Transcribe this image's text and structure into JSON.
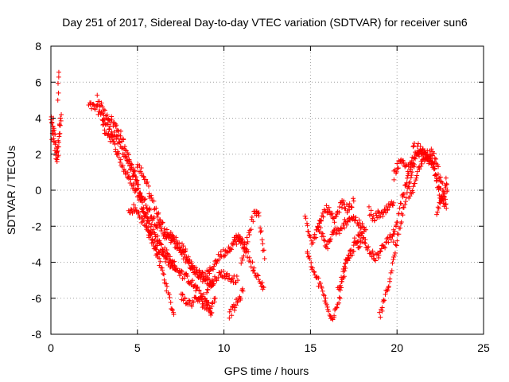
{
  "chart_data": {
    "type": "scatter",
    "title": "Day 251 of 2017, Sidereal Day-to-day VTEC variation (SDTVAR) for receiver sun6",
    "xlabel": "GPS time / hours",
    "ylabel": "SDTVAR / TECUs",
    "xlim": [
      0,
      25
    ],
    "ylim": [
      -8,
      8
    ],
    "x_ticks": [
      0,
      5,
      10,
      15,
      20,
      25
    ],
    "x_tick_labels": [
      "0",
      "5",
      "10",
      "15",
      "20",
      "25"
    ],
    "y_ticks": [
      -8,
      -6,
      -4,
      -2,
      0,
      2,
      4,
      6,
      8
    ],
    "y_tick_labels": [
      "-8",
      "-6",
      "-4",
      "-2",
      "0",
      "2",
      "4",
      "6",
      "8"
    ],
    "grid": true,
    "marker": "+",
    "color": "#ff0000",
    "series": [
      {
        "name": "SDTVAR",
        "segments": [
          [
            [
              0.0,
              4.0
            ],
            [
              0.1,
              3.4
            ],
            [
              0.2,
              2.6
            ],
            [
              0.3,
              1.8
            ],
            [
              0.4,
              2.5
            ],
            [
              0.5,
              3.5
            ],
            [
              0.6,
              4.2
            ]
          ],
          [
            [
              0.05,
              3.0
            ],
            [
              0.15,
              3.8
            ],
            [
              0.25,
              3.2
            ],
            [
              0.35,
              1.5
            ],
            [
              0.45,
              2.2
            ],
            [
              0.55,
              4.0
            ]
          ],
          [
            [
              0.45,
              6.6
            ],
            [
              0.4,
              5.0
            ]
          ],
          [
            [
              2.2,
              4.7
            ],
            [
              2.5,
              4.6
            ],
            [
              2.7,
              4.5
            ],
            [
              3.0,
              4.0
            ],
            [
              3.3,
              3.5
            ],
            [
              3.6,
              3.2
            ],
            [
              4.0,
              2.5
            ],
            [
              4.5,
              1.5
            ],
            [
              5.0,
              0.2
            ],
            [
              5.4,
              -1.3
            ],
            [
              5.8,
              -2.6
            ],
            [
              6.2,
              -3.8
            ],
            [
              6.6,
              -5.0
            ],
            [
              6.9,
              -6.3
            ],
            [
              7.1,
              -6.9
            ]
          ],
          [
            [
              2.7,
              5.2
            ],
            [
              3.0,
              4.4
            ],
            [
              3.5,
              3.9
            ],
            [
              4.0,
              3.2
            ],
            [
              4.4,
              2.0
            ],
            [
              4.8,
              1.0
            ],
            [
              5.2,
              -0.2
            ],
            [
              5.6,
              -1.0
            ],
            [
              6.0,
              -1.7
            ],
            [
              6.5,
              -2.4
            ],
            [
              7.0,
              -2.8
            ],
            [
              7.5,
              -3.3
            ],
            [
              7.8,
              -3.9
            ],
            [
              8.2,
              -4.3
            ],
            [
              8.6,
              -4.8
            ],
            [
              9.0,
              -5.0
            ],
            [
              9.4,
              -5.2
            ]
          ],
          [
            [
              3.0,
              3.5
            ],
            [
              3.4,
              3.0
            ],
            [
              3.8,
              2.2
            ],
            [
              4.2,
              1.2
            ],
            [
              4.6,
              0.5
            ],
            [
              5.0,
              -0.2
            ],
            [
              5.4,
              -1.2
            ],
            [
              5.8,
              -2.0
            ],
            [
              6.2,
              -2.8
            ],
            [
              6.6,
              -3.4
            ],
            [
              7.0,
              -4.0
            ],
            [
              7.5,
              -4.6
            ],
            [
              8.0,
              -5.0
            ],
            [
              8.5,
              -5.6
            ],
            [
              9.0,
              -6.2
            ],
            [
              9.2,
              -6.6
            ],
            [
              9.5,
              -6.0
            ]
          ],
          [
            [
              4.5,
              -1.3
            ],
            [
              4.8,
              -1.0
            ],
            [
              5.2,
              -1.5
            ],
            [
              5.6,
              -2.3
            ],
            [
              6.0,
              -3.0
            ],
            [
              6.4,
              -3.5
            ],
            [
              6.8,
              -4.0
            ],
            [
              7.2,
              -4.4
            ]
          ],
          [
            [
              5.0,
              1.3
            ],
            [
              5.2,
              1.1
            ],
            [
              5.5,
              0.5
            ],
            [
              5.8,
              -0.4
            ],
            [
              6.1,
              -1.2
            ],
            [
              6.4,
              -1.8
            ],
            [
              6.7,
              -2.4
            ],
            [
              7.0,
              -2.6
            ],
            [
              7.3,
              -2.9
            ],
            [
              7.6,
              -3.4
            ]
          ],
          [
            [
              7.6,
              -3.0
            ],
            [
              7.8,
              -3.5
            ],
            [
              8.0,
              -4.0
            ],
            [
              8.3,
              -4.5
            ],
            [
              8.6,
              -4.7
            ],
            [
              8.9,
              -4.8
            ],
            [
              9.2,
              -4.5
            ],
            [
              9.5,
              -4.0
            ],
            [
              9.8,
              -3.6
            ],
            [
              10.1,
              -3.4
            ],
            [
              10.5,
              -3.0
            ],
            [
              10.8,
              -2.7
            ],
            [
              11.2,
              -2.9
            ]
          ],
          [
            [
              7.5,
              -5.8
            ],
            [
              7.8,
              -6.2
            ],
            [
              8.1,
              -6.3
            ],
            [
              8.4,
              -6.0
            ],
            [
              8.7,
              -6.2
            ],
            [
              9.0,
              -6.5
            ],
            [
              9.3,
              -6.8
            ]
          ],
          [
            [
              9.0,
              -5.5
            ],
            [
              9.3,
              -5.2
            ],
            [
              9.6,
              -4.8
            ],
            [
              9.9,
              -4.6
            ],
            [
              10.2,
              -4.8
            ],
            [
              10.5,
              -4.9
            ],
            [
              10.8,
              -5.0
            ]
          ],
          [
            [
              10.3,
              -6.9
            ],
            [
              10.6,
              -6.5
            ],
            [
              10.9,
              -6.0
            ],
            [
              11.1,
              -5.6
            ]
          ],
          [
            [
              10.6,
              -2.6
            ],
            [
              10.9,
              -2.7
            ],
            [
              11.2,
              -3.2
            ],
            [
              11.5,
              -3.8
            ],
            [
              11.8,
              -4.6
            ],
            [
              12.1,
              -5.2
            ],
            [
              12.3,
              -5.4
            ]
          ],
          [
            [
              11.0,
              -4.0
            ],
            [
              11.3,
              -3.0
            ],
            [
              11.6,
              -1.8
            ],
            [
              11.8,
              -1.1
            ],
            [
              12.0,
              -1.4
            ],
            [
              12.2,
              -2.6
            ],
            [
              12.35,
              -3.8
            ]
          ],
          [
            [
              14.7,
              -1.5
            ],
            [
              14.9,
              -2.3
            ],
            [
              15.1,
              -2.9
            ],
            [
              15.3,
              -2.5
            ],
            [
              15.5,
              -2.0
            ],
            [
              15.7,
              -2.6
            ],
            [
              15.9,
              -3.2
            ],
            [
              16.1,
              -2.8
            ],
            [
              16.4,
              -2.2
            ],
            [
              16.7,
              -2.4
            ],
            [
              17.0,
              -1.8
            ],
            [
              17.3,
              -1.5
            ],
            [
              17.6,
              -1.6
            ],
            [
              17.9,
              -2.0
            ],
            [
              18.2,
              -2.2
            ]
          ],
          [
            [
              14.8,
              -3.5
            ],
            [
              15.1,
              -4.3
            ],
            [
              15.4,
              -5.0
            ],
            [
              15.7,
              -5.6
            ],
            [
              15.9,
              -6.3
            ],
            [
              16.1,
              -6.9
            ],
            [
              16.3,
              -7.0
            ],
            [
              16.5,
              -6.5
            ],
            [
              16.7,
              -5.8
            ],
            [
              16.9,
              -4.8
            ],
            [
              17.1,
              -3.8
            ],
            [
              17.3,
              -3.4
            ]
          ],
          [
            [
              15.4,
              -2.2
            ],
            [
              15.6,
              -1.7
            ],
            [
              15.8,
              -1.2
            ],
            [
              16.0,
              -1.0
            ],
            [
              16.2,
              -1.4
            ],
            [
              16.4,
              -1.8
            ],
            [
              16.6,
              -1.2
            ],
            [
              16.8,
              -0.7
            ],
            [
              17.0,
              -0.9
            ],
            [
              17.2,
              -1.1
            ],
            [
              17.5,
              -0.6
            ]
          ],
          [
            [
              16.6,
              -5.5
            ],
            [
              16.8,
              -4.9
            ],
            [
              17.0,
              -4.3
            ],
            [
              17.2,
              -3.8
            ],
            [
              17.4,
              -3.4
            ],
            [
              17.6,
              -3.0
            ],
            [
              17.8,
              -2.6
            ],
            [
              18.0,
              -2.4
            ]
          ],
          [
            [
              17.5,
              -2.8
            ],
            [
              17.8,
              -3.0
            ],
            [
              18.1,
              -2.7
            ],
            [
              18.4,
              -3.3
            ],
            [
              18.7,
              -3.8
            ],
            [
              19.0,
              -3.5
            ],
            [
              19.3,
              -3.0
            ],
            [
              19.6,
              -2.6
            ],
            [
              19.8,
              -2.2
            ]
          ],
          [
            [
              18.4,
              -1.1
            ],
            [
              18.6,
              -1.7
            ],
            [
              18.8,
              -1.4
            ],
            [
              19.0,
              -1.3
            ],
            [
              19.2,
              -1.4
            ],
            [
              19.4,
              -1.1
            ],
            [
              19.6,
              -0.9
            ],
            [
              19.8,
              -0.7
            ]
          ],
          [
            [
              19.0,
              -7.0
            ],
            [
              19.2,
              -6.4
            ],
            [
              19.4,
              -5.6
            ],
            [
              19.6,
              -4.8
            ],
            [
              19.8,
              -3.8
            ],
            [
              20.0,
              -2.8
            ],
            [
              20.2,
              -1.8
            ],
            [
              20.4,
              -0.8
            ],
            [
              20.6,
              0.0
            ],
            [
              20.8,
              0.8
            ],
            [
              21.0,
              1.6
            ],
            [
              21.2,
              2.0
            ],
            [
              21.4,
              2.1
            ],
            [
              21.6,
              1.9
            ],
            [
              21.8,
              1.7
            ],
            [
              22.0,
              1.5
            ],
            [
              22.2,
              1.0
            ],
            [
              22.4,
              0.2
            ],
            [
              22.6,
              -0.6
            ]
          ],
          [
            [
              19.8,
              -2.8
            ],
            [
              20.0,
              -1.8
            ],
            [
              20.2,
              -0.8
            ],
            [
              20.4,
              0.0
            ],
            [
              20.6,
              0.5
            ],
            [
              20.8,
              1.3
            ],
            [
              21.0,
              1.9
            ],
            [
              21.2,
              2.4
            ],
            [
              21.4,
              2.3
            ],
            [
              21.6,
              2.1
            ],
            [
              21.8,
              2.0
            ],
            [
              22.0,
              2.1
            ],
            [
              22.2,
              1.7
            ],
            [
              22.4,
              1.0
            ],
            [
              22.6,
              0.2
            ],
            [
              22.8,
              -0.5
            ]
          ],
          [
            [
              19.8,
              0.8
            ],
            [
              20.0,
              1.3
            ],
            [
              20.2,
              1.5
            ],
            [
              20.4,
              1.4
            ],
            [
              20.6,
              1.2
            ],
            [
              20.8,
              1.6
            ],
            [
              21.0,
              2.6
            ]
          ],
          [
            [
              20.7,
              -0.5
            ],
            [
              21.0,
              0.2
            ],
            [
              21.2,
              1.0
            ],
            [
              21.4,
              1.6
            ],
            [
              21.7,
              2.0
            ],
            [
              21.9,
              1.8
            ],
            [
              22.1,
              1.4
            ],
            [
              22.3,
              0.5
            ],
            [
              22.5,
              -0.4
            ],
            [
              22.7,
              -0.8
            ],
            [
              22.85,
              -1.0
            ]
          ],
          [
            [
              22.3,
              -1.3
            ],
            [
              22.5,
              -0.8
            ],
            [
              22.7,
              -0.2
            ],
            [
              22.85,
              0.5
            ],
            [
              22.9,
              0.0
            ]
          ]
        ]
      }
    ]
  }
}
